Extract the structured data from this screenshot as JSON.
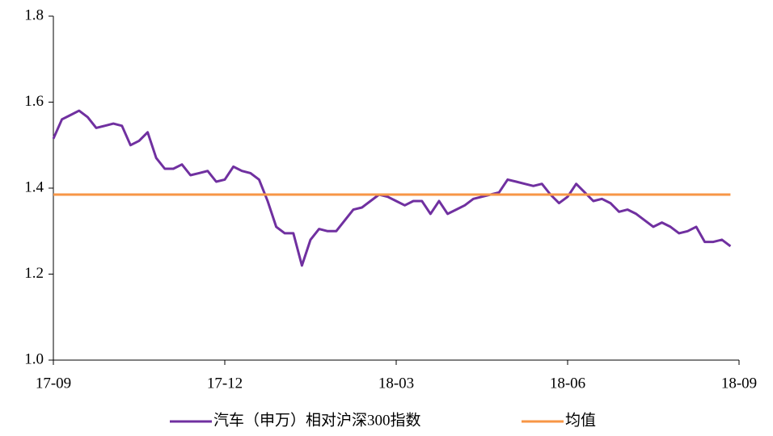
{
  "chart_data": {
    "type": "line",
    "categories": [
      "17-09",
      null,
      null,
      null,
      null,
      null,
      null,
      null,
      null,
      null,
      null,
      null,
      null,
      null,
      null,
      null,
      null,
      null,
      null,
      null,
      "17-12",
      null,
      null,
      null,
      null,
      null,
      null,
      null,
      null,
      null,
      null,
      null,
      null,
      null,
      null,
      null,
      null,
      null,
      null,
      null,
      "18-03",
      null,
      null,
      null,
      null,
      null,
      null,
      null,
      null,
      null,
      null,
      null,
      null,
      null,
      null,
      null,
      null,
      null,
      null,
      null,
      "18-06",
      null,
      null,
      null,
      null,
      null,
      null,
      null,
      null,
      null,
      null,
      null,
      null,
      null,
      null,
      null,
      null,
      null,
      null,
      null,
      "18-09"
    ],
    "series": [
      {
        "name": "汽车（申万）相对沪深300指数",
        "color": "#7030a0",
        "values": [
          1.515,
          1.56,
          1.57,
          1.58,
          1.565,
          1.54,
          1.545,
          1.55,
          1.545,
          1.5,
          1.51,
          1.53,
          1.47,
          1.445,
          1.445,
          1.455,
          1.43,
          1.435,
          1.44,
          1.415,
          1.42,
          1.45,
          1.44,
          1.435,
          1.42,
          1.37,
          1.31,
          1.295,
          1.295,
          1.22,
          1.28,
          1.305,
          1.3,
          1.3,
          1.325,
          1.35,
          1.355,
          1.37,
          1.385,
          1.38,
          1.37,
          1.36,
          1.37,
          1.37,
          1.34,
          1.37,
          1.34,
          1.35,
          1.36,
          1.375,
          1.38,
          1.385,
          1.39,
          1.42,
          1.415,
          1.41,
          1.405,
          1.41,
          1.385,
          1.365,
          1.38,
          1.41,
          1.39,
          1.37,
          1.375,
          1.365,
          1.345,
          1.35,
          1.34,
          1.325,
          1.31,
          1.32,
          1.31,
          1.295,
          1.3,
          1.31,
          1.275,
          1.275,
          1.28,
          1.265,
          null
        ]
      },
      {
        "name": "均值",
        "color": "#f79646",
        "values": [
          1.385,
          1.385,
          1.385,
          1.385,
          1.385,
          1.385,
          1.385,
          1.385,
          1.385,
          1.385,
          1.385,
          1.385,
          1.385,
          1.385,
          1.385,
          1.385,
          1.385,
          1.385,
          1.385,
          1.385,
          1.385,
          1.385,
          1.385,
          1.385,
          1.385,
          1.385,
          1.385,
          1.385,
          1.385,
          1.385,
          1.385,
          1.385,
          1.385,
          1.385,
          1.385,
          1.385,
          1.385,
          1.385,
          1.385,
          1.385,
          1.385,
          1.385,
          1.385,
          1.385,
          1.385,
          1.385,
          1.385,
          1.385,
          1.385,
          1.385,
          1.385,
          1.385,
          1.385,
          1.385,
          1.385,
          1.385,
          1.385,
          1.385,
          1.385,
          1.385,
          1.385,
          1.385,
          1.385,
          1.385,
          1.385,
          1.385,
          1.385,
          1.385,
          1.385,
          1.385,
          1.385,
          1.385,
          1.385,
          1.385,
          1.385,
          1.385,
          1.385,
          1.385,
          1.385,
          1.385,
          null
        ]
      }
    ],
    "ylim": [
      1.0,
      1.8
    ],
    "yticks": [
      {
        "value": 1,
        "label": "1.0"
      },
      1.2,
      1.4,
      1.6,
      1.8
    ],
    "grid": false,
    "legend": "bottom"
  }
}
